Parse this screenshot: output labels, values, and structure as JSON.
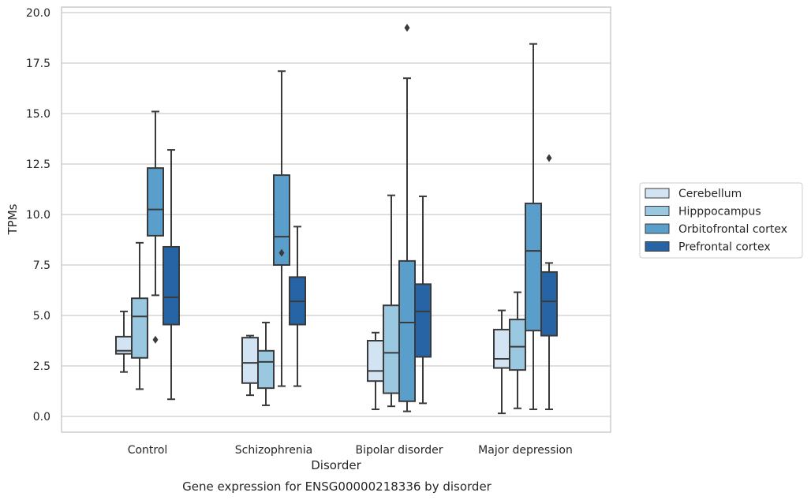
{
  "chart_data": {
    "type": "box",
    "title": "",
    "caption": "Gene expression for ENSG00000218336 by disorder",
    "xlabel": "Disorder",
    "ylabel": "TPMs",
    "ylim": [
      -0.7,
      20.3
    ],
    "yticks": [
      "0.0",
      "2.5",
      "5.0",
      "7.5",
      "10.0",
      "12.5",
      "15.0",
      "17.5",
      "20.0"
    ],
    "grid": "horizontal",
    "legend_position": "right",
    "categories": [
      "Control",
      "Schizophrenia",
      "Bipolar disorder",
      "Major depression"
    ],
    "series": [
      {
        "name": "Cerebellum",
        "color": "#d2e3f3",
        "boxes": [
          {
            "whislo": 2.2,
            "q1": 3.1,
            "med": 3.25,
            "q3": 3.95,
            "whishi": 5.2,
            "fliers": []
          },
          {
            "whislo": 1.05,
            "q1": 1.65,
            "med": 2.65,
            "q3": 3.9,
            "whishi": 4.0,
            "fliers": []
          },
          {
            "whislo": 0.35,
            "q1": 1.75,
            "med": 2.25,
            "q3": 3.75,
            "whishi": 4.15,
            "fliers": []
          },
          {
            "whislo": 0.15,
            "q1": 2.4,
            "med": 2.85,
            "q3": 4.3,
            "whishi": 5.25,
            "fliers": []
          }
        ]
      },
      {
        "name": "Hipppocampus",
        "color": "#9ac8e0",
        "boxes": [
          {
            "whislo": 1.35,
            "q1": 2.9,
            "med": 4.95,
            "q3": 5.85,
            "whishi": 8.6,
            "fliers": []
          },
          {
            "whislo": 0.55,
            "q1": 1.4,
            "med": 2.7,
            "q3": 3.25,
            "whishi": 4.65,
            "fliers": []
          },
          {
            "whislo": 0.5,
            "q1": 1.15,
            "med": 3.15,
            "q3": 5.5,
            "whishi": 10.95,
            "fliers": []
          },
          {
            "whislo": 0.4,
            "q1": 2.3,
            "med": 3.45,
            "q3": 4.8,
            "whishi": 6.15,
            "fliers": []
          }
        ]
      },
      {
        "name": "Orbitofrontal cortex",
        "color": "#5a9fcc",
        "boxes": [
          {
            "whislo": 6.0,
            "q1": 8.95,
            "med": 10.25,
            "q3": 12.3,
            "whishi": 15.1,
            "fliers": [
              3.8
            ]
          },
          {
            "whislo": 1.5,
            "q1": 7.5,
            "med": 8.9,
            "q3": 11.95,
            "whishi": 17.1,
            "fliers": [
              8.1
            ]
          },
          {
            "whislo": 0.25,
            "q1": 0.75,
            "med": 4.65,
            "q3": 7.7,
            "whishi": 16.75,
            "fliers": [
              19.25
            ]
          },
          {
            "whislo": 0.35,
            "q1": 4.25,
            "med": 8.2,
            "q3": 10.55,
            "whishi": 18.45,
            "fliers": []
          }
        ]
      },
      {
        "name": "Prefrontal cortex",
        "color": "#2764a6",
        "boxes": [
          {
            "whislo": 0.85,
            "q1": 4.55,
            "med": 5.9,
            "q3": 8.4,
            "whishi": 13.2,
            "fliers": []
          },
          {
            "whislo": 1.5,
            "q1": 4.55,
            "med": 5.7,
            "q3": 6.9,
            "whishi": 9.4,
            "fliers": []
          },
          {
            "whislo": 0.65,
            "q1": 2.95,
            "med": 5.2,
            "q3": 6.55,
            "whishi": 10.9,
            "fliers": []
          },
          {
            "whislo": 0.35,
            "q1": 4.0,
            "med": 5.7,
            "q3": 7.15,
            "whishi": 7.6,
            "fliers": [
              12.8
            ]
          }
        ]
      }
    ]
  }
}
